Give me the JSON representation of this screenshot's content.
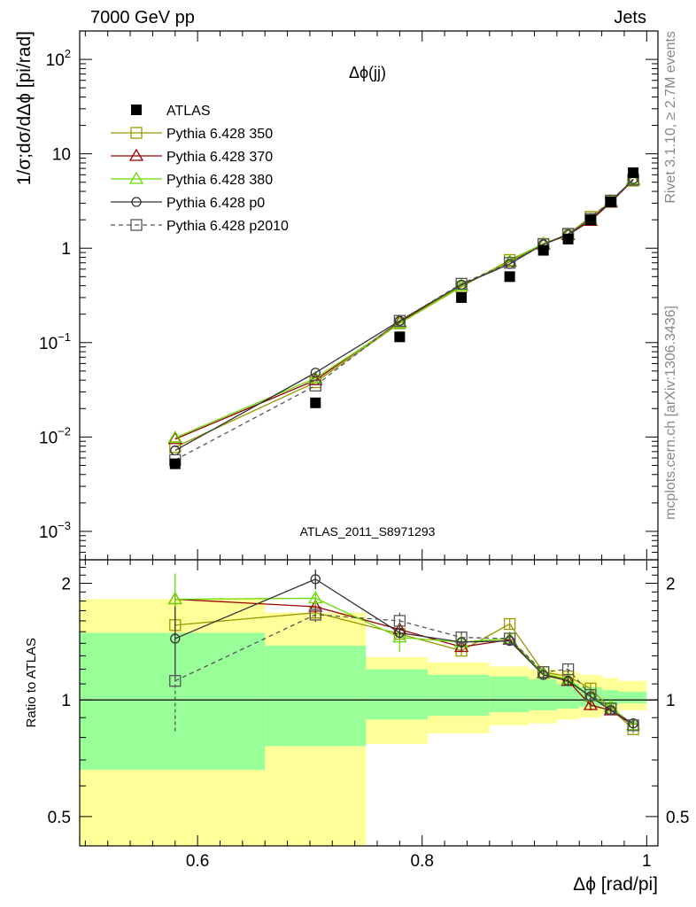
{
  "header": {
    "left": "7000 GeV pp",
    "right": "Jets"
  },
  "side_text": {
    "rivet": "Rivet 3.1.10, ≥ 2.7M events",
    "mcplots": "mcplots.cern.ch [arXiv:1306.3436]"
  },
  "chart_data": {
    "type": "line",
    "title": "Δϕ(jj)",
    "analysis_id": "ATLAS_2011_S8971293",
    "xlabel": "Δϕ [rad/pi]",
    "ylabel": "1/σ;dσ/dΔϕ [pi/rad]",
    "ratio_ylabel": "Ratio to ATLAS",
    "xlim": [
      0.495,
      1.01
    ],
    "ylim": [
      0.0005,
      200
    ],
    "yscale": "log",
    "ratio_ylim": [
      0.42,
      2.3
    ],
    "ratio_yscale": "log",
    "legend_position": "top-left",
    "x_ticks": [
      "0.6",
      "0.8",
      "1"
    ],
    "y_ticks": [
      "10^-3",
      "10^-2",
      "10^-1",
      "1",
      "10",
      "10^2"
    ],
    "ratio_ticks": [
      "0.5",
      "1",
      "2"
    ],
    "x": [
      0.58,
      0.705,
      0.78,
      0.835,
      0.878,
      0.908,
      0.93,
      0.95,
      0.968,
      0.988
    ],
    "data": {
      "name": "ATLAS",
      "values": [
        0.0052,
        0.023,
        0.115,
        0.3,
        0.5,
        0.95,
        1.25,
        2.0,
        3.1,
        6.3
      ],
      "band_edges": [
        0.495,
        0.66,
        0.75,
        0.805,
        0.86,
        0.895,
        0.92,
        0.94,
        0.96,
        0.975,
        1.0
      ],
      "inner_band": [
        [
          0.66,
          1.49
        ],
        [
          0.76,
          1.38
        ],
        [
          0.89,
          1.2
        ],
        [
          0.91,
          1.16
        ],
        [
          0.93,
          1.15
        ],
        [
          0.94,
          1.13
        ],
        [
          0.95,
          1.1
        ],
        [
          0.96,
          1.08
        ],
        [
          0.97,
          1.06
        ],
        [
          0.98,
          1.05
        ]
      ],
      "outer_band": [
        [
          0.42,
          1.82
        ],
        [
          0.37,
          1.68
        ],
        [
          0.77,
          1.29
        ],
        [
          0.82,
          1.25
        ],
        [
          0.86,
          1.22
        ],
        [
          0.87,
          1.2
        ],
        [
          0.89,
          1.18
        ],
        [
          0.9,
          1.16
        ],
        [
          0.92,
          1.14
        ],
        [
          0.94,
          1.12
        ]
      ]
    },
    "series": [
      {
        "name": "Pythia 6.428 350",
        "color": "#999900",
        "marker": "square-open",
        "dash": "solid",
        "values": [
          0.0078,
          0.038,
          0.16,
          0.39,
          0.75,
          1.11,
          1.4,
          2.15,
          3.1,
          5.2
        ],
        "ratio": [
          1.56,
          1.68,
          1.48,
          1.34,
          1.57,
          1.18,
          1.15,
          1.07,
          0.95,
          0.84
        ],
        "ratio_err": [
          0.06,
          0.06,
          0.05,
          0.04,
          0.05,
          0.03,
          0.03,
          0.03,
          0.02,
          0.02
        ]
      },
      {
        "name": "Pythia 6.428 370",
        "color": "#990000",
        "marker": "triangle-open",
        "dash": "solid",
        "values": [
          0.0095,
          0.04,
          0.165,
          0.4,
          0.72,
          1.1,
          1.38,
          1.95,
          3.05,
          5.3
        ],
        "ratio": [
          1.82,
          1.74,
          1.52,
          1.37,
          1.43,
          1.17,
          1.12,
          0.97,
          0.94,
          0.86
        ],
        "ratio_err": [
          0.08,
          0.06,
          0.05,
          0.04,
          0.04,
          0.03,
          0.03,
          0.03,
          0.02,
          0.02
        ]
      },
      {
        "name": "Pythia 6.428 380",
        "color": "#66dd00",
        "marker": "triangle-open",
        "dash": "solid",
        "values": [
          0.0098,
          0.042,
          0.16,
          0.4,
          0.73,
          1.12,
          1.4,
          2.0,
          3.15,
          5.35
        ],
        "ratio": [
          1.82,
          1.83,
          1.45,
          1.41,
          1.44,
          1.17,
          1.13,
          1.02,
          0.96,
          0.86
        ],
        "ratio_err": [
          0.3,
          0.08,
          0.12,
          0.04,
          0.05,
          0.03,
          0.03,
          0.03,
          0.02,
          0.02
        ]
      },
      {
        "name": "Pythia 6.428 p0",
        "color": "#333333",
        "marker": "circle-open",
        "dash": "solid",
        "values": [
          0.0072,
          0.048,
          0.17,
          0.41,
          0.68,
          1.1,
          1.4,
          2.0,
          3.1,
          5.4
        ],
        "ratio": [
          1.44,
          2.05,
          1.49,
          1.41,
          1.42,
          1.16,
          1.12,
          1.02,
          0.94,
          0.87
        ],
        "ratio_err": [
          0.3,
          0.12,
          0.05,
          0.04,
          0.04,
          0.03,
          0.03,
          0.03,
          0.02,
          0.02
        ]
      },
      {
        "name": "Pythia 6.428 p2010",
        "color": "#555555",
        "marker": "square-open",
        "dash": "dashed",
        "values": [
          0.0057,
          0.035,
          0.17,
          0.42,
          0.7,
          1.1,
          1.42,
          2.05,
          3.2,
          5.3
        ],
        "ratio": [
          1.12,
          1.66,
          1.6,
          1.45,
          1.44,
          1.18,
          1.2,
          1.03,
          0.95,
          0.86
        ],
        "ratio_err": [
          0.3,
          0.07,
          0.08,
          0.05,
          0.04,
          0.03,
          0.04,
          0.03,
          0.02,
          0.02
        ]
      }
    ]
  }
}
